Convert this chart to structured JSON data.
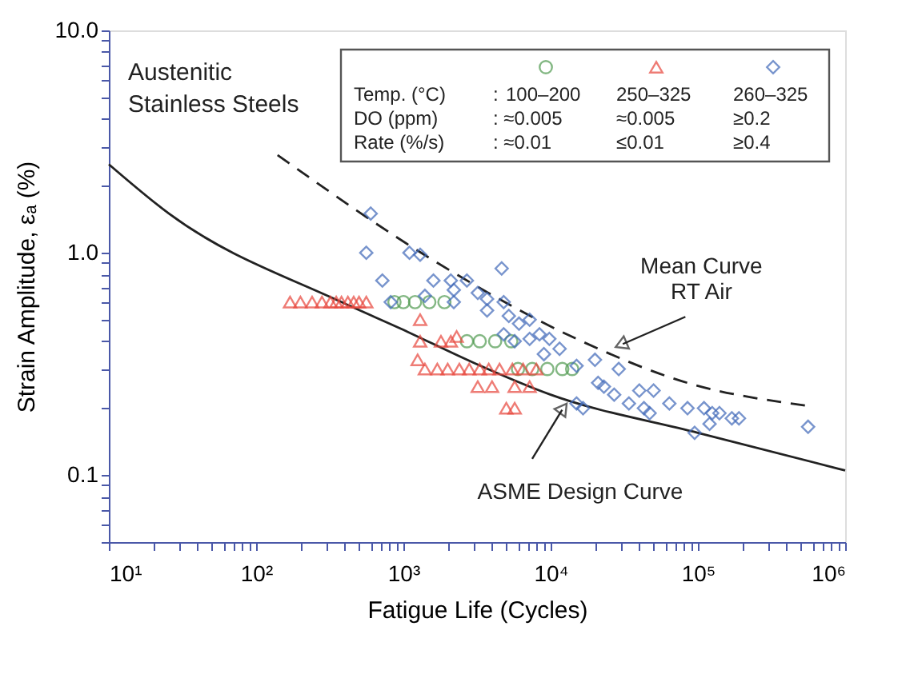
{
  "chart_data": {
    "type": "scatter",
    "xlabel": "Fatigue Life (Cycles)",
    "ylabel": "Strain Amplitude,  εₐ (%)",
    "log": "xy",
    "grid": false,
    "legend": "top right",
    "xlim": [
      10,
      1000000
    ],
    "ylim": [
      0.05,
      10
    ],
    "xticks": [
      {
        "value": 10,
        "label": "10¹"
      },
      {
        "value": 20,
        "label": null
      },
      {
        "value": 30,
        "label": null
      },
      {
        "value": 40,
        "label": null
      },
      {
        "value": 50,
        "label": null
      },
      {
        "value": 60,
        "label": null
      },
      {
        "value": 70,
        "label": null
      },
      {
        "value": 80,
        "label": null
      },
      {
        "value": 90,
        "label": null
      },
      {
        "value": 100,
        "label": "10²"
      },
      {
        "value": 200,
        "label": null
      },
      {
        "value": 300,
        "label": null
      },
      {
        "value": 400,
        "label": null
      },
      {
        "value": 500,
        "label": null
      },
      {
        "value": 600,
        "label": null
      },
      {
        "value": 700,
        "label": null
      },
      {
        "value": 800,
        "label": null
      },
      {
        "value": 900,
        "label": null
      },
      {
        "value": 1000,
        "label": "10³"
      },
      {
        "value": 2000,
        "label": null
      },
      {
        "value": 3000,
        "label": null
      },
      {
        "value": 4000,
        "label": null
      },
      {
        "value": 5000,
        "label": null
      },
      {
        "value": 6000,
        "label": null
      },
      {
        "value": 7000,
        "label": null
      },
      {
        "value": 8000,
        "label": null
      },
      {
        "value": 9000,
        "label": null
      },
      {
        "value": 10000,
        "label": "10⁴"
      },
      {
        "value": 20000,
        "label": null
      },
      {
        "value": 30000,
        "label": null
      },
      {
        "value": 40000,
        "label": null
      },
      {
        "value": 50000,
        "label": null
      },
      {
        "value": 60000,
        "label": null
      },
      {
        "value": 70000,
        "label": null
      },
      {
        "value": 80000,
        "label": null
      },
      {
        "value": 90000,
        "label": null
      },
      {
        "value": 100000,
        "label": "10⁵"
      },
      {
        "value": 200000,
        "label": null
      },
      {
        "value": 300000,
        "label": null
      },
      {
        "value": 400000,
        "label": null
      },
      {
        "value": 500000,
        "label": null
      },
      {
        "value": 600000,
        "label": null
      },
      {
        "value": 700000,
        "label": null
      },
      {
        "value": 800000,
        "label": null
      },
      {
        "value": 900000,
        "label": null
      },
      {
        "value": 1000000,
        "label": "10⁶"
      }
    ],
    "yticks": [
      {
        "value": 0.05,
        "label": null
      },
      {
        "value": 0.06,
        "label": null
      },
      {
        "value": 0.07,
        "label": null
      },
      {
        "value": 0.08,
        "label": null
      },
      {
        "value": 0.09,
        "label": null
      },
      0.1,
      {
        "value": 0.2,
        "label": null
      },
      {
        "value": 0.3,
        "label": null
      },
      {
        "value": 0.4,
        "label": null
      },
      {
        "value": 0.5,
        "label": null
      },
      {
        "value": 0.6,
        "label": null
      },
      {
        "value": 0.7,
        "label": null
      },
      {
        "value": 0.8,
        "label": null
      },
      {
        "value": 0.9,
        "label": null
      },
      {
        "value": 1,
        "label": "1.0"
      },
      {
        "value": 2,
        "label": null
      },
      {
        "value": 3,
        "label": null
      },
      {
        "value": 4,
        "label": null
      },
      {
        "value": 5,
        "label": null
      },
      {
        "value": 6,
        "label": null
      },
      {
        "value": 7,
        "label": null
      },
      {
        "value": 8,
        "label": null
      },
      {
        "value": 9,
        "label": null
      },
      {
        "value": 10,
        "label": "10.0"
      }
    ],
    "series": [
      {
        "type": "line",
        "color": "#222222",
        "line_style": "solid",
        "marker": "none",
        "x": [
          10,
          25.6,
          380,
          1000,
          3000,
          10000,
          100000,
          1000000
        ],
        "values": [
          2.5,
          1.5,
          0.6,
          0.45,
          0.32,
          0.23,
          0.155,
          0.105
        ]
      },
      {
        "type": "line",
        "color": "#222222",
        "line_style": "dashed",
        "marker": "none",
        "x": [
          140,
          1660,
          15000,
          85000,
          560000
        ],
        "values": [
          2.75,
          0.91,
          0.41,
          0.26,
          0.205
        ]
      },
      {
        "name": "100–200",
        "color": "#4f9a4f",
        "marker": "circle",
        "x": [
          870,
          1000,
          1200,
          1500,
          1900,
          2700,
          3300,
          4200,
          5400,
          6000,
          7500,
          9500,
          12000,
          14000
        ],
        "values": [
          0.6,
          0.6,
          0.6,
          0.6,
          0.6,
          0.4,
          0.4,
          0.4,
          0.4,
          0.3,
          0.3,
          0.3,
          0.3,
          0.3
        ]
      },
      {
        "name": "250–325",
        "color": "#e8463c",
        "marker": "triangle",
        "x": [
          170,
          200,
          240,
          280,
          320,
          350,
          380,
          420,
          460,
          500,
          560,
          1300,
          1300,
          1250,
          1800,
          2100,
          2300,
          1400,
          1700,
          2000,
          2400,
          2800,
          3300,
          3800,
          4500,
          5500,
          6500,
          8000,
          3200,
          4000,
          5700,
          7200,
          5000,
          5700
        ],
        "values": [
          0.6,
          0.6,
          0.6,
          0.6,
          0.6,
          0.6,
          0.6,
          0.6,
          0.6,
          0.6,
          0.6,
          0.5,
          0.4,
          0.33,
          0.4,
          0.4,
          0.42,
          0.3,
          0.3,
          0.3,
          0.3,
          0.3,
          0.3,
          0.3,
          0.3,
          0.3,
          0.3,
          0.3,
          0.25,
          0.25,
          0.25,
          0.25,
          0.2,
          0.2
        ]
      },
      {
        "name": "260–325",
        "color": "#3f68b8",
        "marker": "diamond",
        "x": [
          600,
          560,
          1100,
          1300,
          720,
          4650,
          1600,
          2100,
          2700,
          3200,
          3700,
          2200,
          1400,
          820,
          2200,
          3700,
          4800,
          5200,
          6100,
          7200,
          8400,
          9800,
          11500,
          7200,
          4800,
          5700,
          9000,
          15000,
          20000,
          29000,
          21000,
          23000,
          16600,
          15000,
          27000,
          34000,
          40000,
          50000,
          43000,
          47000,
          64000,
          85000,
          110000,
          125000,
          95000,
          120000,
          140000,
          170000,
          190000,
          560000
        ],
        "values": [
          1.5,
          1.0,
          1.0,
          0.98,
          0.75,
          0.85,
          0.75,
          0.75,
          0.75,
          0.66,
          0.62,
          0.68,
          0.64,
          0.6,
          0.6,
          0.55,
          0.6,
          0.52,
          0.48,
          0.5,
          0.43,
          0.41,
          0.37,
          0.41,
          0.43,
          0.4,
          0.35,
          0.31,
          0.33,
          0.3,
          0.26,
          0.25,
          0.2,
          0.21,
          0.23,
          0.21,
          0.24,
          0.24,
          0.2,
          0.19,
          0.21,
          0.2,
          0.2,
          0.19,
          0.155,
          0.17,
          0.19,
          0.18,
          0.18,
          0.165
        ]
      }
    ],
    "annotations": [
      "Austenitic",
      "Stainless Steels",
      "Temp. (°C)",
      "DO (ppm)",
      "Rate (%/s)",
      ":",
      ": ≈0.005",
      "≈0.005",
      "≥0.2",
      ": ≈0.01",
      "≤0.01",
      "≥0.4",
      {
        "text": "Mean Curve\nRT Air",
        "x": 26000,
        "y": 0.37
      },
      {
        "text": "ASME Design Curve",
        "x": 13000,
        "y": 0.215
      }
    ]
  }
}
